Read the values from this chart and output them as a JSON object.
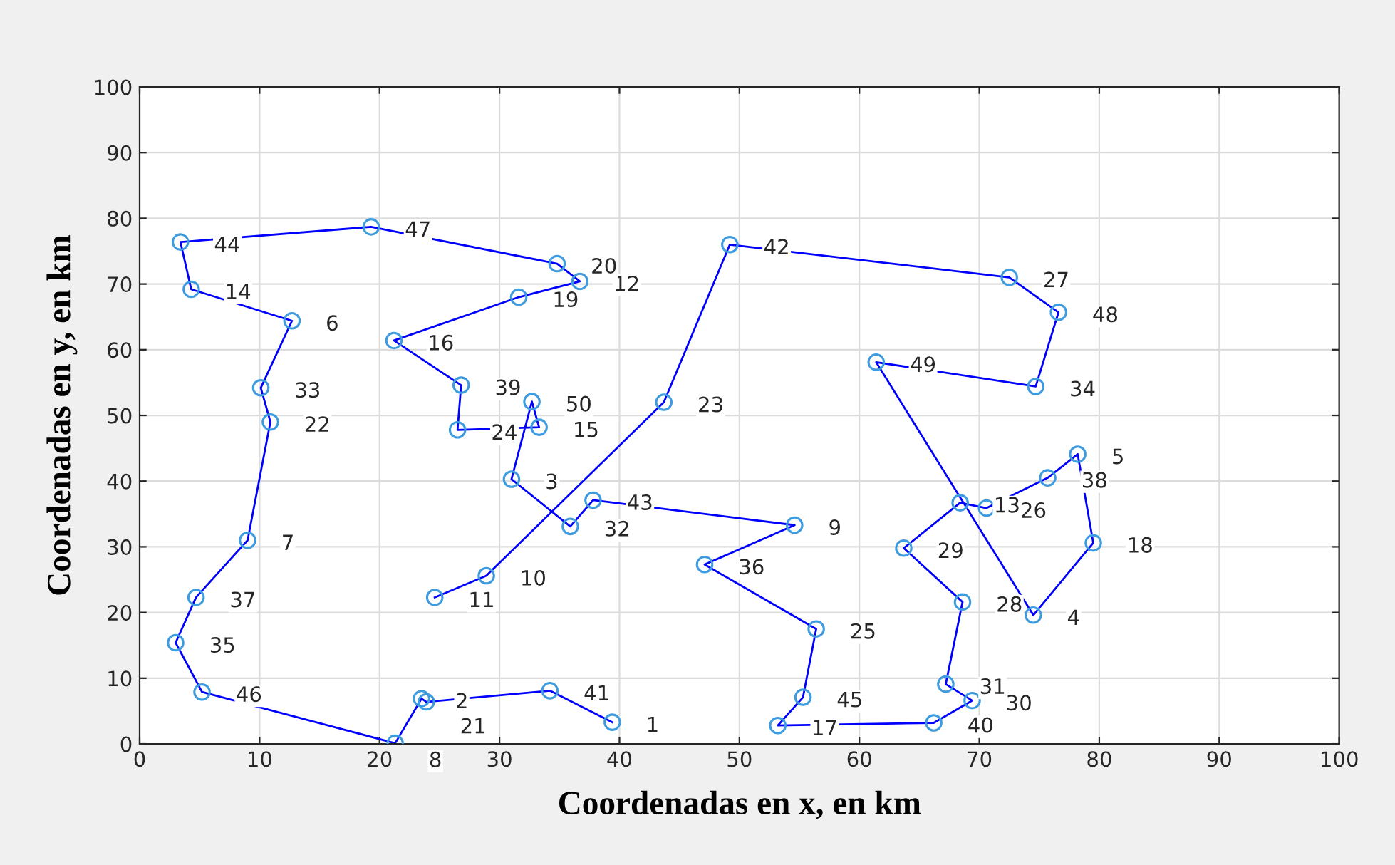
{
  "chart_data": {
    "type": "line",
    "xlabel": "Coordenadas en x, en km",
    "ylabel": "Coordenadas en y, en km",
    "xlim": [
      0,
      100
    ],
    "ylim": [
      0,
      100
    ],
    "xticks": [
      0,
      10,
      20,
      30,
      40,
      50,
      60,
      70,
      80,
      90,
      100
    ],
    "yticks": [
      0,
      10,
      20,
      30,
      40,
      50,
      60,
      70,
      80,
      90,
      100
    ],
    "grid": true,
    "legend": false,
    "series": [
      {
        "marker": "none",
        "color": "#0000ff",
        "x": [
          24.6,
          28.9,
          43.7,
          49.2,
          72.5,
          76.6,
          74.7,
          61.4,
          74.5,
          79.5,
          78.2,
          75.7,
          70.6,
          68.4,
          63.7,
          68.6,
          67.2,
          69.4,
          66.2,
          53.2,
          55.3,
          56.4,
          47.1,
          54.6,
          37.8,
          35.9,
          31.0,
          32.7,
          33.3,
          26.5,
          26.8,
          21.2,
          31.6,
          36.7,
          34.8,
          19.3,
          3.4,
          4.3,
          12.7,
          10.1,
          10.9,
          9.0,
          4.7,
          3.0,
          5.2,
          21.3,
          23.5,
          23.9,
          34.2,
          39.4
        ],
        "values": [
          22.3,
          25.6,
          52.0,
          76.0,
          71.0,
          65.7,
          54.4,
          58.1,
          19.6,
          30.6,
          44.1,
          40.5,
          35.9,
          36.7,
          29.8,
          21.6,
          9.1,
          6.6,
          3.2,
          2.8,
          7.1,
          17.5,
          27.3,
          33.3,
          37.1,
          33.1,
          40.3,
          52.1,
          48.2,
          47.8,
          54.6,
          61.4,
          68.0,
          70.4,
          73.1,
          78.7,
          76.4,
          69.2,
          64.4,
          54.2,
          49.0,
          31.0,
          22.3,
          15.4,
          7.9,
          0.1,
          6.9,
          6.4,
          8.1,
          3.3
        ]
      },
      {
        "type": "scatter",
        "marker": "circle",
        "color": "#3d9be0",
        "x": [
          24.6,
          28.9,
          43.7,
          49.2,
          72.5,
          76.6,
          74.7,
          61.4,
          74.5,
          79.5,
          78.2,
          75.7,
          70.6,
          68.4,
          63.7,
          68.6,
          67.2,
          69.4,
          66.2,
          53.2,
          55.3,
          56.4,
          47.1,
          54.6,
          37.8,
          35.9,
          31.0,
          32.7,
          33.3,
          26.5,
          26.8,
          21.2,
          31.6,
          36.7,
          34.8,
          19.3,
          3.4,
          4.3,
          12.7,
          10.1,
          10.9,
          9.0,
          4.7,
          3.0,
          5.2,
          21.3,
          23.5,
          23.9,
          34.2,
          39.4
        ],
        "values": [
          22.3,
          25.6,
          52.0,
          76.0,
          71.0,
          65.7,
          54.4,
          58.1,
          19.6,
          30.6,
          44.1,
          40.5,
          35.9,
          36.7,
          29.8,
          21.6,
          9.1,
          6.6,
          3.2,
          2.8,
          7.1,
          17.5,
          27.3,
          33.3,
          37.1,
          33.1,
          40.3,
          52.1,
          48.2,
          47.8,
          54.6,
          61.4,
          68.0,
          70.4,
          73.1,
          78.7,
          76.4,
          69.2,
          64.4,
          54.2,
          49.0,
          31.0,
          22.3,
          15.4,
          7.9,
          0.1,
          6.9,
          6.4,
          8.1,
          3.3
        ]
      }
    ],
    "annotations": [
      {
        "text": "11",
        "x": 24.6,
        "y": 22.3
      },
      {
        "text": "10",
        "x": 28.9,
        "y": 25.6
      },
      {
        "text": "23",
        "x": 43.7,
        "y": 52.0
      },
      {
        "text": "42",
        "x": 49.2,
        "y": 76.0
      },
      {
        "text": "27",
        "x": 72.5,
        "y": 71.0
      },
      {
        "text": "48",
        "x": 76.6,
        "y": 65.7
      },
      {
        "text": "34",
        "x": 74.7,
        "y": 54.4
      },
      {
        "text": "49",
        "x": 61.4,
        "y": 58.1
      },
      {
        "text": "4",
        "x": 74.5,
        "y": 19.6
      },
      {
        "text": "18",
        "x": 79.5,
        "y": 30.6
      },
      {
        "text": "5",
        "x": 78.2,
        "y": 44.1
      },
      {
        "text": "38",
        "x": 75.7,
        "y": 40.5
      },
      {
        "text": "26",
        "x": 70.6,
        "y": 35.9
      },
      {
        "text": "13",
        "x": 68.4,
        "y": 36.7
      },
      {
        "text": "29",
        "x": 63.7,
        "y": 29.8
      },
      {
        "text": "28",
        "x": 68.6,
        "y": 21.6
      },
      {
        "text": "31",
        "x": 67.2,
        "y": 9.1
      },
      {
        "text": "30",
        "x": 69.4,
        "y": 6.6
      },
      {
        "text": "40",
        "x": 66.2,
        "y": 3.2
      },
      {
        "text": "17",
        "x": 53.2,
        "y": 2.8
      },
      {
        "text": "45",
        "x": 55.3,
        "y": 7.1
      },
      {
        "text": "25",
        "x": 56.4,
        "y": 17.5
      },
      {
        "text": "36",
        "x": 47.1,
        "y": 27.3
      },
      {
        "text": "9",
        "x": 54.6,
        "y": 33.3
      },
      {
        "text": "43",
        "x": 37.8,
        "y": 37.1
      },
      {
        "text": "32",
        "x": 35.9,
        "y": 33.1
      },
      {
        "text": "3",
        "x": 31.0,
        "y": 40.3
      },
      {
        "text": "50",
        "x": 32.7,
        "y": 52.1
      },
      {
        "text": "15",
        "x": 33.3,
        "y": 48.2
      },
      {
        "text": "24",
        "x": 26.5,
        "y": 47.8
      },
      {
        "text": "39",
        "x": 26.8,
        "y": 54.6
      },
      {
        "text": "16",
        "x": 21.2,
        "y": 61.4
      },
      {
        "text": "19",
        "x": 31.6,
        "y": 68.0
      },
      {
        "text": "12",
        "x": 36.7,
        "y": 70.4
      },
      {
        "text": "20",
        "x": 34.8,
        "y": 73.1
      },
      {
        "text": "47",
        "x": 19.3,
        "y": 78.7
      },
      {
        "text": "44",
        "x": 3.4,
        "y": 76.4
      },
      {
        "text": "14",
        "x": 4.3,
        "y": 69.2
      },
      {
        "text": "6",
        "x": 12.7,
        "y": 64.4
      },
      {
        "text": "33",
        "x": 10.1,
        "y": 54.2
      },
      {
        "text": "22",
        "x": 10.9,
        "y": 49.0
      },
      {
        "text": "7",
        "x": 9.0,
        "y": 31.0
      },
      {
        "text": "37",
        "x": 4.7,
        "y": 22.3
      },
      {
        "text": "35",
        "x": 3.0,
        "y": 15.4
      },
      {
        "text": "46",
        "x": 5.2,
        "y": 7.9
      },
      {
        "text": "8",
        "x": 21.3,
        "y": 0.1
      },
      {
        "text": "2",
        "x": 23.5,
        "y": 6.9
      },
      {
        "text": "21",
        "x": 23.9,
        "y": 6.4
      },
      {
        "text": "41",
        "x": 34.2,
        "y": 8.1
      },
      {
        "text": "1",
        "x": 39.4,
        "y": 3.3
      }
    ]
  }
}
